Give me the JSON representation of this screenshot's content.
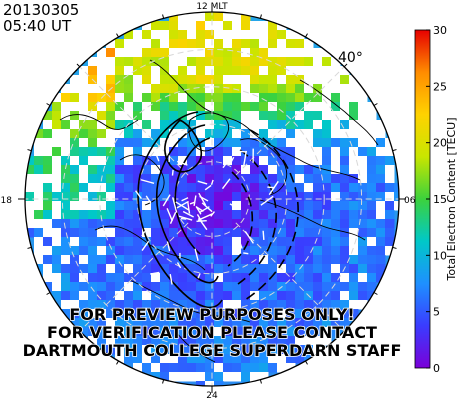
{
  "header": {
    "date": "20130305",
    "time": "05:40 UT"
  },
  "map": {
    "mlt_labels": {
      "top": "12 MLT",
      "bottom": "24",
      "left": "18",
      "right": "06"
    },
    "latitude_label": "40°",
    "hemisphere_view": "north-polar",
    "watermark": [
      "FOR PREVIEW PURPOSES ONLY!",
      "FOR VERIFICATION PLEASE CONTACT",
      "DARTMOUTH COLLEGE SUPERDARN STAFF"
    ]
  },
  "colorbar": {
    "label": "Total Electron Content [TECU]",
    "min": 0,
    "max": 30,
    "ticks": [
      "0",
      "5",
      "10",
      "15",
      "20",
      "25",
      "30"
    ],
    "colormap": [
      "#7a00d8",
      "#3a3cff",
      "#1e90ff",
      "#00c8c8",
      "#3cd23c",
      "#c8e600",
      "#ffd200",
      "#ff8c00",
      "#e60000"
    ]
  }
}
